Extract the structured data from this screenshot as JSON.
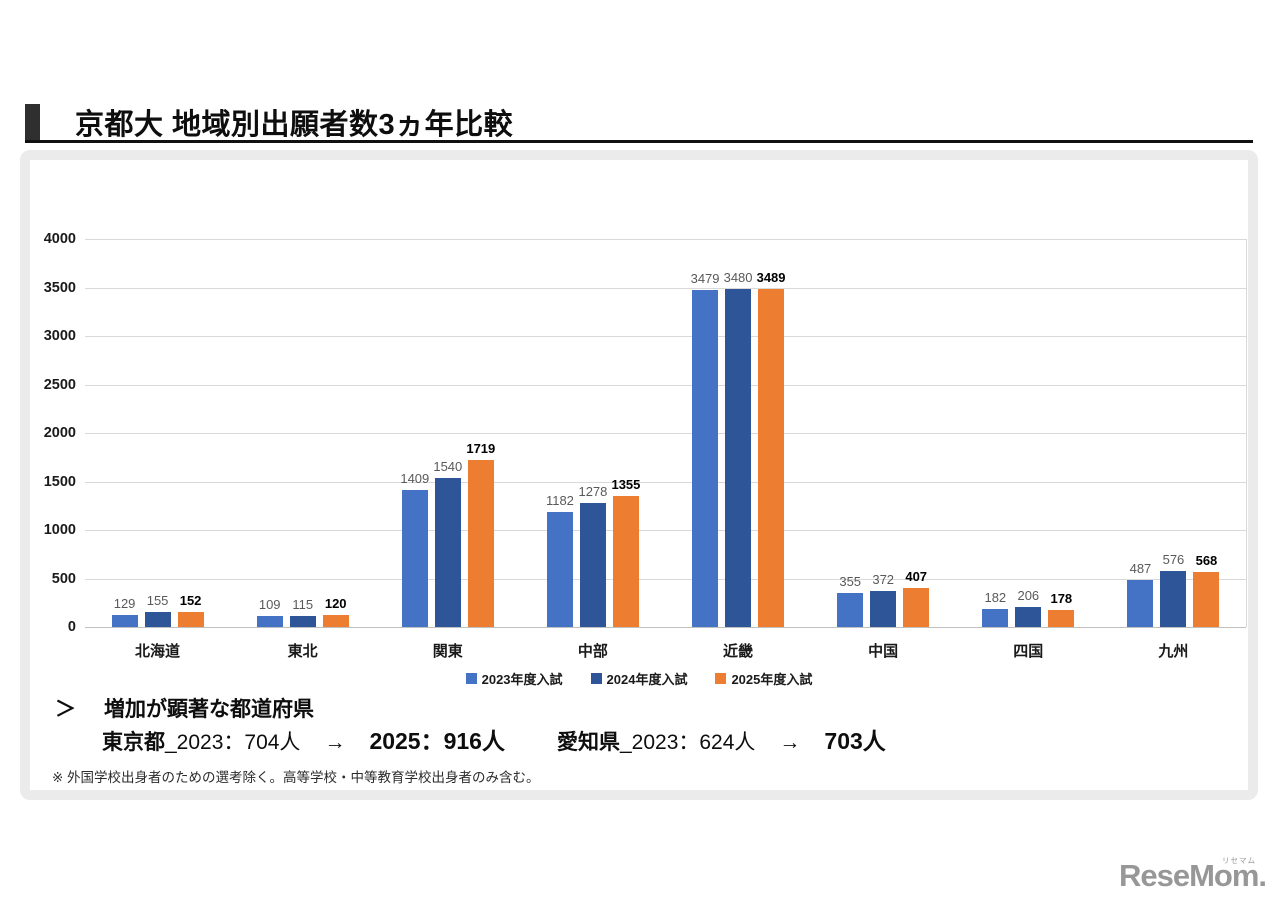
{
  "header": {
    "title": "京都大 地域別出願者数3ヵ年比較"
  },
  "chart_data": {
    "type": "bar",
    "title": "",
    "categories": [
      "北海道",
      "東北",
      "関東",
      "中部",
      "近畿",
      "中国",
      "四国",
      "九州"
    ],
    "series": [
      {
        "name": "2023年度入試",
        "color": "#4472C4",
        "label_color": "#595959",
        "label_bold": false,
        "values": [
          129,
          109,
          1409,
          1182,
          3479,
          355,
          182,
          487
        ]
      },
      {
        "name": "2024年度入試",
        "color": "#2E5597",
        "label_color": "#595959",
        "label_bold": false,
        "values": [
          155,
          115,
          1540,
          1278,
          3480,
          372,
          206,
          576
        ]
      },
      {
        "name": "2025年度入試",
        "color": "#ED7D31",
        "label_color": "#000000",
        "label_bold": true,
        "values": [
          152,
          120,
          1719,
          1355,
          3489,
          407,
          178,
          568
        ]
      }
    ],
    "ylim": [
      0,
      4000
    ],
    "ytick_step": 500,
    "grid": "horizontal",
    "gridline_color": "#d9d9d9",
    "legend_position": "bottom",
    "value_labels": true
  },
  "highlight": {
    "marker": "＞",
    "heading": "増加が顕著な都道府県",
    "arrow": "→",
    "tokyo": {
      "prefecture": "東京都",
      "from": "_2023：704人",
      "to": "2025：916人"
    },
    "aichi": {
      "prefecture": "愛知県",
      "from": "_2023：624人",
      "to": "703人"
    }
  },
  "footnote": "※ 外国学校出身者のための選考除く。高等学校・中等教育学校出身者のみ含む。",
  "logo": {
    "text": "ReseMom.",
    "ruby": "リセマム"
  }
}
